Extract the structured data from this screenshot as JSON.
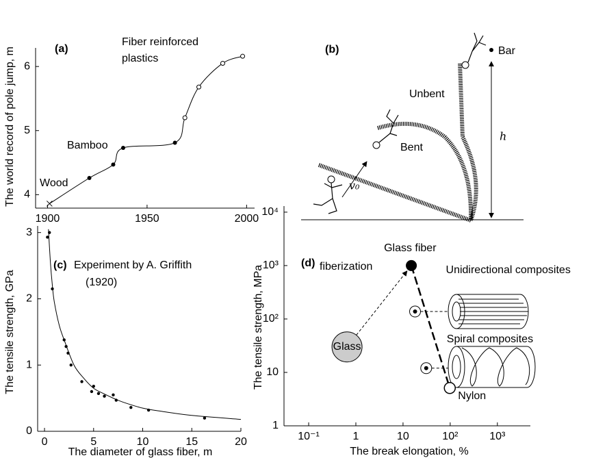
{
  "chart_data": [
    {
      "type": "line",
      "ylabel": "The world record of pole jump, m",
      "x": [
        1901,
        1921,
        1933,
        1938,
        1964,
        1969,
        1976,
        1988,
        1998
      ],
      "values": [
        3.86,
        4.26,
        4.47,
        4.73,
        4.81,
        5.2,
        5.68,
        6.05,
        6.16
      ],
      "markers": [
        "cross",
        "filled",
        "filled",
        "filled",
        "filled",
        "open",
        "open",
        "open",
        "open"
      ],
      "color": "#000000",
      "xlim": [
        1894,
        2004
      ],
      "ylim": [
        3.79,
        6.29
      ],
      "xticks": [
        1900,
        1950,
        2000
      ],
      "yticks": [
        4,
        5,
        6
      ],
      "annotations": [
        "(a)",
        "Fiber reinforced",
        "plastics",
        "Bamboo",
        "Wood"
      ]
    },
    {
      "type": "scatter",
      "xlabel": "The diameter of glass fiber,   m",
      "ylabel": "The tensile strength, GPa",
      "series": [
        {
          "style": "points",
          "color": "#000000",
          "x": [
            0.3,
            0.5,
            0.8,
            2.0,
            2.2,
            2.4,
            2.7,
            3.8,
            4.8,
            5.0,
            5.5,
            6.1,
            7.0,
            7.3,
            8.8,
            10.6,
            16.3
          ],
          "values": [
            2.93,
            3.0,
            2.15,
            1.38,
            1.28,
            1.18,
            1.0,
            0.75,
            0.6,
            0.68,
            0.57,
            0.53,
            0.55,
            0.47,
            0.36,
            0.32,
            0.2
          ]
        },
        {
          "style": "curve",
          "color": "#000000",
          "x": [
            0.4,
            0.6,
            0.8,
            1,
            1.5,
            2,
            3,
            4,
            5,
            6,
            7,
            8,
            10,
            12,
            15,
            20
          ],
          "values": [
            3.05,
            2.55,
            2.2,
            1.95,
            1.6,
            1.38,
            1.0,
            0.8,
            0.65,
            0.57,
            0.5,
            0.44,
            0.35,
            0.3,
            0.24,
            0.18
          ]
        }
      ],
      "xlim": [
        -0.7,
        20
      ],
      "ylim": [
        0,
        3.1
      ],
      "xticks": [
        0,
        5,
        10,
        15,
        20
      ],
      "yticks": [
        0,
        1,
        2,
        3
      ],
      "annotations": [
        "(c)",
        "Experiment by A. Griffith",
        "(1920)"
      ]
    },
    {
      "type": "scatter",
      "xlabel": "The break elongation, %",
      "ylabel": "The tensile strength, MPa",
      "log_x": true,
      "log_y": true,
      "points": [
        {
          "name": "Glass",
          "x": 0.65,
          "y": 30,
          "marker": "gray"
        },
        {
          "name": "Glass fiber",
          "x": 15,
          "y": 1000,
          "marker": "filled"
        },
        {
          "name": "Unidirectional composites",
          "x": 18,
          "y": 138,
          "marker": "dotted"
        },
        {
          "name": "Spiral composites",
          "x": 31,
          "y": 12,
          "marker": "dotted"
        },
        {
          "name": "Nylon",
          "x": 98,
          "y": 5.1,
          "marker": "open"
        }
      ],
      "xlim": [
        0.03,
        5000
      ],
      "ylim": [
        1,
        13000
      ],
      "xticks": [
        {
          "value": 0.1,
          "label": "10⁻¹"
        },
        1,
        10,
        {
          "value": 100,
          "label": "10²"
        },
        {
          "value": 1000,
          "label": "10³"
        }
      ],
      "yticks": [
        1,
        10,
        {
          "value": 100,
          "label": "10²"
        },
        {
          "value": 1000,
          "label": "10³"
        },
        {
          "value": 10000,
          "label": "10⁴"
        }
      ],
      "annotations": [
        "(d)",
        "fiberization"
      ]
    }
  ],
  "diagram": {
    "label": "(b)",
    "bar": "Bar",
    "unbent": "Unbent",
    "bent": "Bent",
    "height": "h",
    "velocity": "v₀"
  }
}
